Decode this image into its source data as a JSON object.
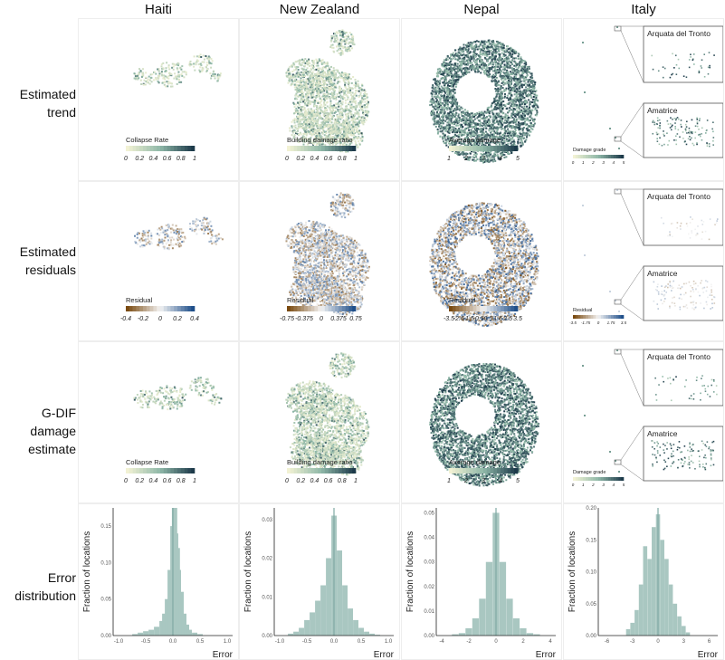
{
  "columns": [
    "Haiti",
    "New Zealand",
    "Nepal",
    "Italy"
  ],
  "rows": [
    [
      "Estimated",
      "trend"
    ],
    [
      "Estimated",
      "residuals"
    ],
    [
      "G-DIF",
      "damage",
      "estimate"
    ],
    [
      "Error",
      "distribution"
    ]
  ],
  "insets": {
    "top": "Arquata del Tronto",
    "bottom": "Amatrice"
  },
  "legends": {
    "trend": [
      {
        "title": "Collapse Rate",
        "ticks": [
          "0",
          "0.2",
          "0.4",
          "0.6",
          "0.8",
          "1"
        ]
      },
      {
        "title": "Building damage ratio",
        "ticks": [
          "0",
          "0.2",
          "0.4",
          "0.6",
          "0.8",
          "1"
        ]
      },
      {
        "title": "Average damage",
        "ticks": [
          "1",
          "2",
          "3",
          "4",
          "5"
        ]
      },
      {
        "title": "Damage grade",
        "ticks": [
          "0",
          "1",
          "2",
          "3",
          "4",
          "5"
        ]
      }
    ],
    "residual": [
      {
        "title": "Residual",
        "ticks": [
          "-0.4",
          "-0.2",
          "0",
          "0.2",
          "0.4"
        ]
      },
      {
        "title": "Residual",
        "ticks": [
          "-0.75",
          "-0.375",
          "0",
          "0.375",
          "0.75"
        ]
      },
      {
        "title": "Residual",
        "ticks": [
          "-3.5",
          "-2.5",
          "-1.5",
          "-0.5",
          "0.5",
          "1.5",
          "2.5",
          "3.5"
        ]
      },
      {
        "title": "Residual",
        "ticks": [
          "-3.5",
          "-1.75",
          "0",
          "1.75",
          "3.5"
        ]
      }
    ]
  },
  "colors": {
    "trend_low": "#f2f2d4",
    "trend_mid": "#8fb8a8",
    "trend_high": "#1d3a4a",
    "res_neg": "#7a4a10",
    "res_zero": "#f4f4f4",
    "res_pos": "#1f4f8a",
    "hist": "#a9c7c1",
    "hist_line": "#7fa9a4"
  },
  "chart_data": [
    {
      "type": "bar",
      "title": "Haiti",
      "xlabel": "Error",
      "ylabel": "Fraction of locations",
      "xlim": [
        -1.1,
        1.1
      ],
      "ylim": [
        0,
        0.175
      ],
      "xticks": [
        "-1.0",
        "-0.5",
        "0.0",
        "0.5",
        "1.0"
      ],
      "yticks": [
        "0.00",
        "0.05",
        "0.10",
        "0.15"
      ],
      "x": [
        -0.7,
        -0.6,
        -0.5,
        -0.4,
        -0.3,
        -0.2,
        -0.15,
        -0.1,
        -0.05,
        0.0,
        0.03,
        0.05,
        0.08,
        0.1,
        0.15,
        0.2,
        0.25,
        0.3,
        0.4,
        0.5
      ],
      "values": [
        0.002,
        0.004,
        0.006,
        0.008,
        0.012,
        0.02,
        0.03,
        0.05,
        0.09,
        0.15,
        0.175,
        0.14,
        0.12,
        0.09,
        0.06,
        0.03,
        0.015,
        0.008,
        0.004,
        0.002
      ]
    },
    {
      "type": "bar",
      "title": "New Zealand",
      "xlabel": "Error",
      "ylabel": "Fraction of locations",
      "xlim": [
        -1.1,
        1.1
      ],
      "ylim": [
        0,
        0.033
      ],
      "xticks": [
        "-1.0",
        "-0.5",
        "0.0",
        "0.5",
        "1.0"
      ],
      "yticks": [
        "0.00",
        "0.01",
        "0.02",
        "0.03"
      ],
      "x": [
        -0.8,
        -0.7,
        -0.6,
        -0.5,
        -0.4,
        -0.3,
        -0.2,
        -0.1,
        0.0,
        0.1,
        0.2,
        0.3,
        0.4,
        0.5,
        0.6,
        0.7,
        0.8
      ],
      "values": [
        0.0005,
        0.001,
        0.002,
        0.004,
        0.006,
        0.009,
        0.013,
        0.02,
        0.031,
        0.022,
        0.013,
        0.007,
        0.004,
        0.002,
        0.001,
        0.0005,
        0.0002
      ]
    },
    {
      "type": "bar",
      "title": "Nepal",
      "xlabel": "Error",
      "ylabel": "Fraction of locations",
      "xlim": [
        -4.4,
        4.4
      ],
      "ylim": [
        0,
        0.052
      ],
      "xticks": [
        "-4",
        "-2",
        "0",
        "2",
        "4"
      ],
      "yticks": [
        "0.00",
        "0.01",
        "0.02",
        "0.03",
        "0.04",
        "0.05"
      ],
      "x": [
        -3.0,
        -2.5,
        -2.0,
        -1.5,
        -1.0,
        -0.5,
        0.0,
        0.5,
        1.0,
        1.5,
        2.0,
        2.5,
        3.0
      ],
      "values": [
        0.0005,
        0.001,
        0.003,
        0.007,
        0.015,
        0.03,
        0.05,
        0.03,
        0.015,
        0.007,
        0.003,
        0.001,
        0.0005
      ]
    },
    {
      "type": "bar",
      "title": "Italy",
      "xlabel": "Error",
      "ylabel": "Fraction of locations",
      "xlim": [
        -7,
        7
      ],
      "ylim": [
        0,
        0.2
      ],
      "xticks": [
        "-6",
        "-3",
        "0",
        "3",
        "6"
      ],
      "yticks": [
        "0.00",
        "0.05",
        "0.10",
        "0.15",
        "0.20"
      ],
      "x": [
        -3.5,
        -3.0,
        -2.5,
        -2.0,
        -1.5,
        -1.0,
        -0.5,
        0.0,
        0.5,
        1.0,
        1.5,
        2.0,
        2.5,
        3.0,
        3.5
      ],
      "values": [
        0.01,
        0.02,
        0.04,
        0.08,
        0.14,
        0.12,
        0.17,
        0.19,
        0.15,
        0.12,
        0.08,
        0.05,
        0.03,
        0.015,
        0.005
      ]
    }
  ]
}
